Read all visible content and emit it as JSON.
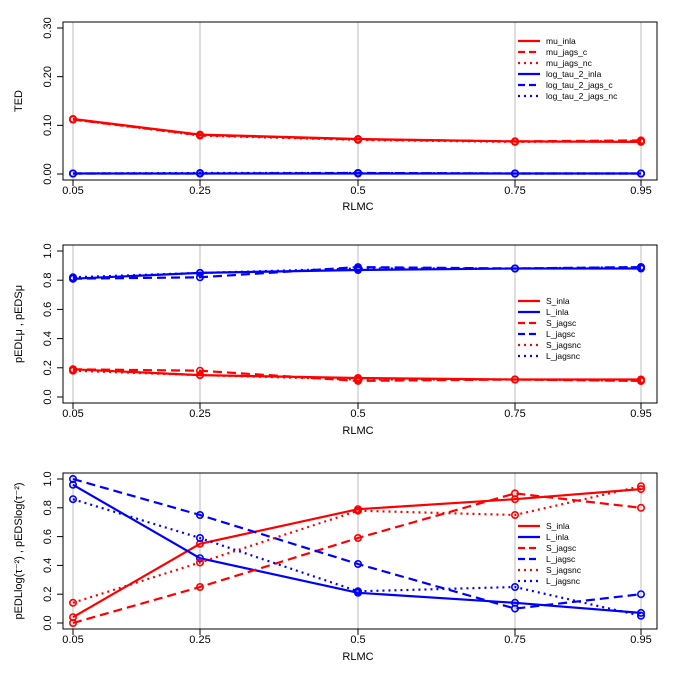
{
  "chart_data": [
    {
      "type": "line",
      "xlabel": "RLMC",
      "ylabel": "TED",
      "x": [
        0.05,
        0.25,
        0.5,
        0.75,
        0.95
      ],
      "x_tick_labels": [
        "0.05",
        "0.25",
        "0.5",
        "0.75",
        "0.95"
      ],
      "ylim": [
        0,
        0.3
      ],
      "y_ticks": [
        0,
        0.1,
        0.2,
        0.3
      ],
      "y_tick_labels": [
        "0.00",
        "0.10",
        "0.20",
        "0.30"
      ],
      "grid": "vertical",
      "legend_position": "top-right",
      "series": [
        {
          "name": "mu_inla",
          "color": "#ff0000",
          "style": "solid",
          "values": [
            0.113,
            0.081,
            0.072,
            0.067,
            0.066
          ]
        },
        {
          "name": "mu_jags_c",
          "color": "#ff0000",
          "style": "dashed",
          "values": [
            0.112,
            0.08,
            0.071,
            0.067,
            0.069
          ]
        },
        {
          "name": "mu_jags_nc",
          "color": "#ff0000",
          "style": "dotted",
          "values": [
            0.112,
            0.079,
            0.07,
            0.066,
            0.068
          ]
        },
        {
          "name": "log_tau_2_inla",
          "color": "#0000ff",
          "style": "solid",
          "values": [
            0.001,
            0.001,
            0.001,
            0.001,
            0.001
          ]
        },
        {
          "name": "log_tau_2_jags_c",
          "color": "#0000ff",
          "style": "dashed",
          "values": [
            0.001,
            0.001,
            0.002,
            0.001,
            0.001
          ]
        },
        {
          "name": "log_tau_2_jags_nc",
          "color": "#0000ff",
          "style": "dotted",
          "values": [
            0.001,
            0.002,
            0.002,
            0.001,
            0.001
          ]
        }
      ]
    },
    {
      "type": "line",
      "xlabel": "RLMC",
      "ylabel": "pEDLμ , pEDSμ",
      "x": [
        0.05,
        0.25,
        0.5,
        0.75,
        0.95
      ],
      "x_tick_labels": [
        "0.05",
        "0.25",
        "0.5",
        "0.75",
        "0.95"
      ],
      "ylim": [
        0,
        1
      ],
      "y_ticks": [
        0,
        0.2,
        0.4,
        0.6,
        0.8,
        1.0
      ],
      "y_tick_labels": [
        "0.0",
        "0.2",
        "0.4",
        "0.6",
        "0.8",
        "1.0"
      ],
      "grid": "vertical",
      "legend_position": "right",
      "series": [
        {
          "name": "S_inla",
          "color": "#ff0000",
          "style": "solid",
          "values": [
            0.19,
            0.15,
            0.13,
            0.12,
            0.12
          ]
        },
        {
          "name": "L_inla",
          "color": "#0000ff",
          "style": "solid",
          "values": [
            0.81,
            0.85,
            0.87,
            0.88,
            0.88
          ]
        },
        {
          "name": "S_jagsc",
          "color": "#ff0000",
          "style": "dashed",
          "values": [
            0.19,
            0.18,
            0.11,
            0.12,
            0.11
          ]
        },
        {
          "name": "L_jagsc",
          "color": "#0000ff",
          "style": "dashed",
          "values": [
            0.81,
            0.82,
            0.89,
            0.88,
            0.89
          ]
        },
        {
          "name": "S_jagsnc",
          "color": "#ff0000",
          "style": "dotted",
          "values": [
            0.18,
            0.15,
            0.12,
            0.12,
            0.11
          ]
        },
        {
          "name": "L_jagsnc",
          "color": "#0000ff",
          "style": "dotted",
          "values": [
            0.82,
            0.85,
            0.88,
            0.88,
            0.89
          ]
        }
      ]
    },
    {
      "type": "line",
      "xlabel": "RLMC",
      "ylabel": "pEDLlog(τ⁻²) , pEDSlog(τ⁻²)",
      "x": [
        0.05,
        0.25,
        0.5,
        0.75,
        0.95
      ],
      "x_tick_labels": [
        "0.05",
        "0.25",
        "0.5",
        "0.75",
        "0.95"
      ],
      "ylim": [
        0,
        1
      ],
      "y_ticks": [
        0,
        0.2,
        0.4,
        0.6,
        0.8,
        1.0
      ],
      "y_tick_labels": [
        "0.0",
        "0.2",
        "0.4",
        "0.6",
        "0.8",
        "1.0"
      ],
      "grid": "vertical",
      "legend_position": "right",
      "series": [
        {
          "name": "S_inla",
          "color": "#ff0000",
          "style": "solid",
          "values": [
            0.04,
            0.55,
            0.79,
            0.86,
            0.93
          ]
        },
        {
          "name": "L_inla",
          "color": "#0000ff",
          "style": "solid",
          "values": [
            0.96,
            0.45,
            0.21,
            0.14,
            0.07
          ]
        },
        {
          "name": "S_jagsc",
          "color": "#ff0000",
          "style": "dashed",
          "values": [
            0.0,
            0.25,
            0.59,
            0.9,
            0.8
          ]
        },
        {
          "name": "L_jagsc",
          "color": "#0000ff",
          "style": "dashed",
          "values": [
            1.0,
            0.75,
            0.41,
            0.1,
            0.2
          ]
        },
        {
          "name": "S_jagsnc",
          "color": "#ff0000",
          "style": "dotted",
          "values": [
            0.14,
            0.42,
            0.78,
            0.75,
            0.95
          ]
        },
        {
          "name": "L_jagsnc",
          "color": "#0000ff",
          "style": "dotted",
          "values": [
            0.86,
            0.59,
            0.22,
            0.25,
            0.05
          ]
        }
      ]
    }
  ]
}
